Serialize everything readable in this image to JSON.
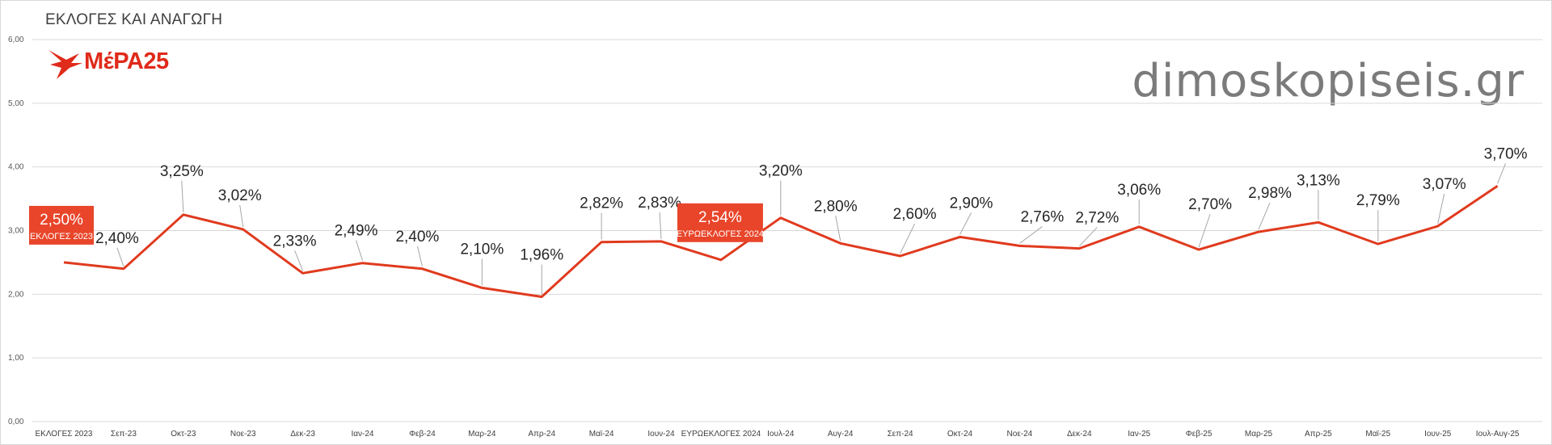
{
  "title": "ΕΚΛΟΓΕΣ ΚΑΙ ΑΝΑΓΩΓΗ",
  "logo": {
    "text": "ΜέΡΑ25",
    "color": "#e02a1a",
    "icon": "swallow-bird-icon"
  },
  "watermark": "dimoskopiseis.gr",
  "colors": {
    "line": "#e03a1e",
    "highlight_box": "#e8452a",
    "grid": "#d9d9d9"
  },
  "chart_data": {
    "type": "line",
    "title": "ΕΚΛΟΓΕΣ ΚΑΙ ΑΝΑΓΩΓΗ",
    "xlabel": "",
    "ylabel": "",
    "ylim": [
      0,
      6
    ],
    "yticks": [
      "0,00",
      "1,00",
      "2,00",
      "3,00",
      "4,00",
      "5,00",
      "6,00"
    ],
    "grid": true,
    "legend": "none",
    "categories": [
      "ΕΚΛΟΓΕΣ 2023",
      "Σεπ-23",
      "Οκτ-23",
      "Νοε-23",
      "Δεκ-23",
      "Ιαν-24",
      "Φεβ-24",
      "Μαρ-24",
      "Απρ-24",
      "Μαϊ-24",
      "Ιουν-24",
      "ΕΥΡΩΕΚΛΟΓΕΣ 2024",
      "Ιουλ-24",
      "Αυγ-24",
      "Σεπ-24",
      "Οκτ-24",
      "Νοε-24",
      "Δεκ-24",
      "Ιαν-25",
      "Φεβ-25",
      "Μαρ-25",
      "Απρ-25",
      "Μαϊ-25",
      "Ιουν-25",
      "Ιουλ-Αυγ-25"
    ],
    "values": [
      2.5,
      2.4,
      3.25,
      3.02,
      2.33,
      2.49,
      2.4,
      2.1,
      1.96,
      2.82,
      2.83,
      2.54,
      3.2,
      2.8,
      2.6,
      2.9,
      2.76,
      2.72,
      3.06,
      2.7,
      2.98,
      3.13,
      2.79,
      3.07,
      3.7
    ],
    "labels": [
      "2,50%",
      "2,40%",
      "3,25%",
      "3,02%",
      "2,33%",
      "2,49%",
      "2,40%",
      "2,10%",
      "1,96%",
      "2,82%",
      "2,83%",
      "2,54%",
      "3,20%",
      "2,80%",
      "2,60%",
      "2,90%",
      "2,76%",
      "2,72%",
      "3,06%",
      "2,70%",
      "2,98%",
      "3,13%",
      "2,79%",
      "3,07%",
      "3,70%"
    ],
    "highlights": [
      {
        "index": 0,
        "value_label": "2,50%",
        "sub_label": "ΕΚΛΟΓΕΣ 2023"
      },
      {
        "index": 11,
        "value_label": "2,54%",
        "sub_label": "ΕΥΡΩΕΚΛΟΓΕΣ 2024"
      }
    ]
  }
}
